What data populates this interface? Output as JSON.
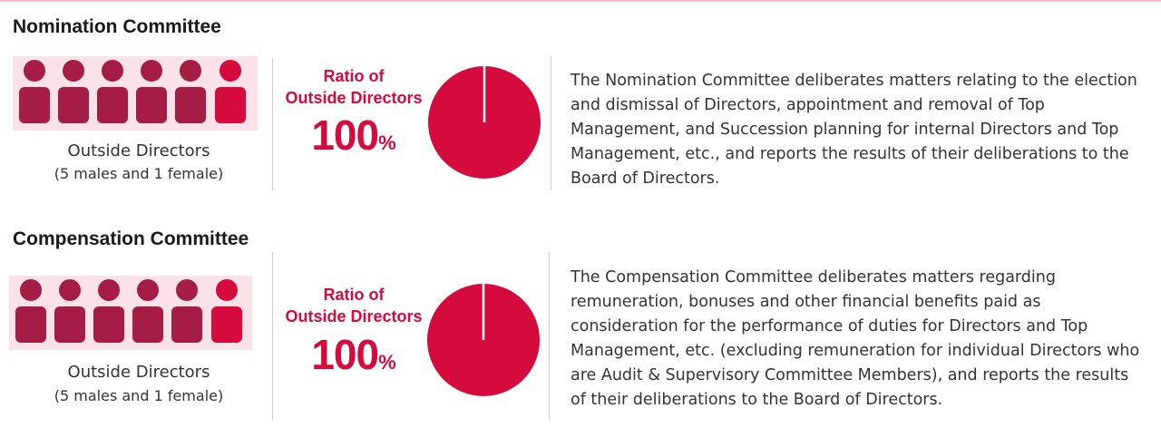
{
  "colors": {
    "accent": "#d50a3d",
    "male_figure": "#a51d45",
    "female_figure": "#d50a3d",
    "figure_box": "#fbe1e8",
    "divider": "#cfcfcf"
  },
  "sections": [
    {
      "title": "Nomination Committee",
      "members": [
        "male",
        "male",
        "male",
        "male",
        "male",
        "female"
      ],
      "caption_line1": "Outside Directors",
      "caption_line2": "(5 males and 1 female)",
      "ratio_label_line1": "Ratio of",
      "ratio_label_line2": "Outside Directors",
      "ratio_value": "100",
      "ratio_unit": "%",
      "description_lines": [
        "The Nomination Committee deliberates matters relating to the election",
        "and dismissal of Directors, appointment and removal of Top",
        "Management, and Succession planning for internal Directors and Top",
        "Management, etc., and reports the results of their deliberations to the",
        "Board of Directors."
      ]
    },
    {
      "title": "Compensation Committee",
      "members": [
        "male",
        "male",
        "male",
        "male",
        "male",
        "female"
      ],
      "caption_line1": "Outside Directors",
      "caption_line2": "(5 males and 1 female)",
      "ratio_label_line1": "Ratio of",
      "ratio_label_line2": "Outside Directors",
      "ratio_value": "100",
      "ratio_unit": "%",
      "description_lines": [
        "The Compensation Committee deliberates matters regarding",
        "remuneration, bonuses and other financial benefits paid as",
        "consideration for the performance of duties for Directors and Top",
        "Management, etc. (excluding remuneration for individual Directors who",
        "are Audit & Supervisory Committee Members), and reports the results",
        "of their deliberations to the Board of Directors."
      ]
    }
  ],
  "chart_data": [
    {
      "type": "pie",
      "title": "Ratio of Outside Directors",
      "slices": [
        {
          "label": "Outside Directors",
          "value": 100
        }
      ]
    },
    {
      "type": "pie",
      "title": "Ratio of Outside Directors",
      "slices": [
        {
          "label": "Outside Directors",
          "value": 100
        }
      ]
    }
  ]
}
